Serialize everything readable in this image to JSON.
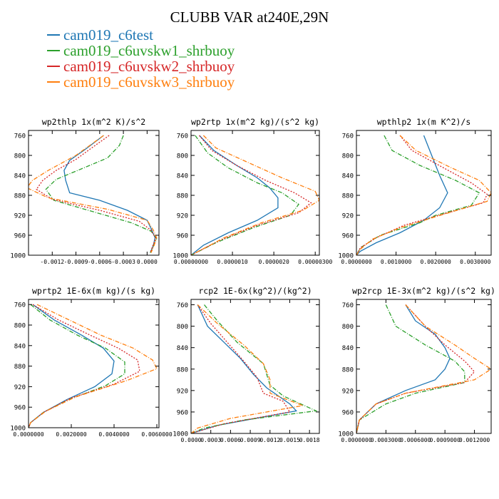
{
  "title": "CLUBB VAR at240E,29N",
  "legend": [
    {
      "name": "cam019_c6test",
      "color": "#1f77b4",
      "dash": "solid"
    },
    {
      "name": "cam019_c6uvskw1_shrbuoy",
      "color": "#2ca02c",
      "dash": "dashdot"
    },
    {
      "name": "cam019_c6uvskw2_shrbuoy",
      "color": "#d62728",
      "dash": "dot"
    },
    {
      "name": "cam019_c6uvskw3_shrbuoy",
      "color": "#ff7f0e",
      "dash": "dashdot"
    }
  ],
  "chart_data": [
    {
      "type": "line",
      "title": "wp2thlp  1x(m^2 K)/s^2",
      "xlim": [
        -0.0015,
        0.00015
      ],
      "ylim": [
        1000,
        750
      ],
      "yticks": [
        760,
        800,
        840,
        880,
        920,
        960,
        1000
      ],
      "xticks": [
        -0.0012,
        -0.0009,
        -0.0006,
        -0.0003,
        0.0
      ],
      "xticklabels": [
        "-0.0012",
        "-0.0009",
        "-0.0006",
        "-0.0003",
        "0.0000"
      ],
      "series": [
        {
          "name": "cam019_c6test",
          "x": [
            -0.00055,
            -0.0008,
            -0.00098,
            -0.00105,
            -0.00103,
            -0.00098,
            -0.0006,
            -0.00025,
            0.0,
            6e-05,
            0.0001,
            8e-05,
            4e-05
          ],
          "y": [
            760,
            790,
            810,
            830,
            850,
            875,
            890,
            910,
            930,
            950,
            965,
            980,
            995
          ]
        },
        {
          "name": "cam019_c6uvskw1_shrbuoy",
          "x": [
            -0.0003,
            -0.00035,
            -0.0005,
            -0.0008,
            -0.00115,
            -0.00128,
            -0.00118,
            -0.0007,
            -0.0002,
            5e-05,
            0.00012,
            8e-05,
            4e-05
          ],
          "y": [
            760,
            780,
            805,
            825,
            848,
            868,
            890,
            912,
            935,
            952,
            966,
            982,
            995
          ]
        },
        {
          "name": "cam019_c6uvskw2_shrbuoy",
          "x": [
            -0.00048,
            -0.0007,
            -0.0009,
            -0.00115,
            -0.00132,
            -0.0014,
            -0.0012,
            -0.0006,
            -0.0001,
            5e-05,
            0.00011,
            7e-05,
            4e-05
          ],
          "y": [
            760,
            785,
            808,
            830,
            850,
            868,
            888,
            910,
            932,
            950,
            966,
            982,
            995
          ]
        },
        {
          "name": "cam019_c6uvskw3_shrbuoy",
          "x": [
            -0.00055,
            -0.0009,
            -0.00125,
            -0.00145,
            -0.00152,
            -0.00125,
            -0.0005,
            0.0,
            8e-05,
            0.00012,
            9e-05,
            5e-05
          ],
          "y": [
            760,
            800,
            830,
            850,
            865,
            885,
            908,
            930,
            950,
            965,
            980,
            995
          ]
        }
      ]
    },
    {
      "type": "line",
      "title": "wp2rtp  1x(m^2 kg)/(s^2 kg)",
      "xlim": [
        0,
        3.1e-06
      ],
      "ylim": [
        1000,
        750
      ],
      "yticks": [
        760,
        800,
        840,
        880,
        920,
        960,
        1000
      ],
      "xticks": [
        0,
        1e-06,
        2e-06,
        3e-06
      ],
      "xticklabels": [
        "0.00000000",
        "0.0000010",
        "0.0000020",
        "0.00000300"
      ],
      "series": [
        {
          "name": "cam019_c6test",
          "x": [
            2e-07,
            5.5e-07,
            1.1e-06,
            1.6e-06,
            1.9e-06,
            2.1e-06,
            2.1e-06,
            1.6e-06,
            9e-07,
            3e-07,
            0.0
          ],
          "y": [
            760,
            790,
            820,
            845,
            865,
            885,
            905,
            930,
            955,
            980,
            1000
          ]
        },
        {
          "name": "cam019_c6uvskw1_shrbuoy",
          "x": [
            1e-07,
            4e-07,
            9e-07,
            1.6e-06,
            2.2e-06,
            2.6e-06,
            2.4e-06,
            1.5e-06,
            6e-07,
            0.0
          ],
          "y": [
            760,
            795,
            825,
            855,
            875,
            898,
            920,
            945,
            975,
            1000
          ]
        },
        {
          "name": "cam019_c6uvskw2_shrbuoy",
          "x": [
            2e-07,
            5e-07,
            1.1e-06,
            1.8e-06,
            2.5e-06,
            2.9e-06,
            2.6e-06,
            1.6e-06,
            7e-07,
            0.0
          ],
          "y": [
            760,
            790,
            820,
            850,
            875,
            895,
            915,
            940,
            970,
            1000
          ]
        },
        {
          "name": "cam019_c6uvskw3_shrbuoy",
          "x": [
            3e-07,
            6e-07,
            1.4e-06,
            2.2e-06,
            3e-06,
            3.1e-06,
            2.7e-06,
            1.7e-06,
            8e-07,
            0.0
          ],
          "y": [
            760,
            785,
            815,
            845,
            872,
            890,
            910,
            935,
            965,
            1000
          ]
        }
      ]
    },
    {
      "type": "line",
      "title": "wpthlp2  1x(m K^2)/s",
      "xlim": [
        0,
        0.0034
      ],
      "ylim": [
        1000,
        750
      ],
      "yticks": [
        760,
        800,
        840,
        880,
        920,
        960,
        1000
      ],
      "xticks": [
        0,
        0.001,
        0.002,
        0.003
      ],
      "xticklabels": [
        "0.0000000",
        "0.0010000",
        "0.0020000",
        "0.0030000"
      ],
      "series": [
        {
          "name": "cam019_c6test",
          "x": [
            0.0017,
            0.0019,
            0.0021,
            0.0023,
            0.0021,
            0.0017,
            0.0011,
            0.0005,
            0.0001,
            0.0
          ],
          "y": [
            760,
            800,
            840,
            875,
            905,
            930,
            955,
            975,
            992,
            1000
          ]
        },
        {
          "name": "cam019_c6uvskw1_shrbuoy",
          "x": [
            0.0007,
            0.0009,
            0.0016,
            0.0025,
            0.0031,
            0.0029,
            0.002,
            0.0016,
            0.0006,
            0.0001,
            0.0
          ],
          "y": [
            760,
            790,
            820,
            850,
            875,
            900,
            920,
            935,
            960,
            985,
            1000
          ]
        },
        {
          "name": "cam019_c6uvskw2_shrbuoy",
          "x": [
            0.0011,
            0.0014,
            0.0022,
            0.0029,
            0.0033,
            0.0032,
            0.0023,
            0.0012,
            0.0005,
            0.0001,
            0.0
          ],
          "y": [
            760,
            790,
            825,
            855,
            878,
            895,
            915,
            940,
            965,
            985,
            1000
          ]
        },
        {
          "name": "cam019_c6uvskw3_shrbuoy",
          "x": [
            0.0011,
            0.0015,
            0.0024,
            0.0031,
            0.0034,
            0.0033,
            0.0022,
            0.0011,
            0.0004,
            0.0001,
            0.0
          ],
          "y": [
            760,
            790,
            825,
            850,
            875,
            892,
            918,
            945,
            968,
            988,
            1000
          ]
        }
      ]
    },
    {
      "type": "line",
      "title": "wprtp2  1E-6x(m kg)/(s kg)",
      "xlim": [
        0,
        0.0061
      ],
      "ylim": [
        1000,
        750
      ],
      "yticks": [
        760,
        800,
        840,
        880,
        920,
        960,
        1000
      ],
      "xticks": [
        0,
        0.002,
        0.004,
        0.006
      ],
      "xticklabels": [
        "0.0000000",
        "0.0020000",
        "0.0040000",
        "0.0060000"
      ],
      "series": [
        {
          "name": "cam019_c6test",
          "x": [
            0.0002,
            0.0012,
            0.0025,
            0.0035,
            0.004,
            0.0039,
            0.0031,
            0.0018,
            0.0007,
            0.0001,
            0.0
          ],
          "y": [
            760,
            790,
            820,
            845,
            870,
            895,
            920,
            945,
            970,
            990,
            1000
          ]
        },
        {
          "name": "cam019_c6uvskw1_shrbuoy",
          "x": [
            0.0001,
            0.001,
            0.0023,
            0.0036,
            0.0045,
            0.0045,
            0.0036,
            0.0019,
            0.0007,
            0.0001,
            0.0
          ],
          "y": [
            760,
            790,
            820,
            845,
            872,
            895,
            918,
            945,
            970,
            990,
            1000
          ]
        },
        {
          "name": "cam019_c6uvskw2_shrbuoy",
          "x": [
            0.0002,
            0.0014,
            0.0029,
            0.0042,
            0.0051,
            0.0052,
            0.004,
            0.002,
            0.0007,
            0.0001,
            0.0
          ],
          "y": [
            760,
            790,
            820,
            845,
            868,
            890,
            915,
            942,
            970,
            990,
            1000
          ]
        },
        {
          "name": "cam019_c6uvskw3_shrbuoy",
          "x": [
            0.0004,
            0.0019,
            0.0034,
            0.0049,
            0.0058,
            0.006,
            0.0046,
            0.0022,
            0.0008,
            0.0001,
            0.0
          ],
          "y": [
            760,
            790,
            820,
            845,
            868,
            885,
            908,
            940,
            968,
            990,
            1000
          ]
        }
      ]
    },
    {
      "type": "line",
      "title": "rcp2  1E-6x(kg^2)/(kg^2)",
      "xlim": [
        0,
        0.00195
      ],
      "ylim": [
        1000,
        750
      ],
      "yticks": [
        760,
        800,
        840,
        880,
        920,
        960,
        1000
      ],
      "xticks": [
        0,
        0.0003,
        0.0006,
        0.0009,
        0.0012,
        0.0015,
        0.0018
      ],
      "xticklabels": [
        "0.0000",
        "0.0003",
        "0.0006",
        "0.0009",
        "0.0012",
        "0.0015",
        "0.0018"
      ],
      "series": [
        {
          "name": "cam019_c6test",
          "x": [
            0.0001,
            0.00025,
            0.0005,
            0.00075,
            0.00095,
            0.00115,
            0.0015,
            0.0016,
            0.0004,
            0.0
          ],
          "y": [
            760,
            800,
            830,
            860,
            890,
            915,
            945,
            958,
            985,
            1000
          ]
        },
        {
          "name": "cam019_c6uvskw1_shrbuoy",
          "x": [
            0.0002,
            0.0004,
            0.0007,
            0.0011,
            0.0012,
            0.0014,
            0.0019,
            0.0008,
            0.0002,
            0.0
          ],
          "y": [
            760,
            790,
            830,
            870,
            910,
            930,
            958,
            975,
            990,
            1000
          ]
        },
        {
          "name": "cam019_c6uvskw2_shrbuoy",
          "x": [
            0.0001,
            0.0003,
            0.00055,
            0.0008,
            0.001,
            0.0011,
            0.0014,
            0.0015,
            0.0005,
            0.0
          ],
          "y": [
            760,
            795,
            830,
            865,
            895,
            925,
            940,
            960,
            982,
            1000
          ]
        },
        {
          "name": "cam019_c6uvskw3_shrbuoy",
          "x": [
            0.0001,
            0.0004,
            0.0008,
            0.0011,
            0.0012,
            0.0012,
            0.0017,
            0.0006,
            0.0001,
            0.0
          ],
          "y": [
            760,
            795,
            835,
            870,
            900,
            925,
            948,
            972,
            990,
            1000
          ]
        }
      ]
    },
    {
      "type": "line",
      "title": "wp2rcp  1E-3x(m^2 kg)/(s^2 kg)",
      "xlim": [
        0,
        0.00137
      ],
      "ylim": [
        1000,
        750
      ],
      "yticks": [
        760,
        800,
        840,
        880,
        920,
        960,
        1000
      ],
      "xticks": [
        0,
        0.0003,
        0.0006,
        0.0009,
        0.0012
      ],
      "xticklabels": [
        "0.0000000",
        "0.0003000",
        "0.0006000",
        "0.0009000",
        "0.0012000"
      ],
      "series": [
        {
          "name": "cam019_c6test",
          "x": [
            0.0005,
            0.0006,
            0.0008,
            0.0009,
            0.00095,
            0.0009,
            0.0008,
            0.0005,
            0.0002,
            3e-05,
            0.0
          ],
          "y": [
            760,
            790,
            815,
            840,
            860,
            880,
            900,
            920,
            945,
            975,
            1000
          ]
        },
        {
          "name": "cam019_c6uvskw1_shrbuoy",
          "x": [
            0.0003,
            0.0004,
            0.0007,
            0.001,
            0.0011,
            0.0011,
            0.0006,
            0.0003,
            3e-05,
            0.0
          ],
          "y": [
            760,
            800,
            835,
            865,
            885,
            905,
            925,
            945,
            975,
            1000
          ]
        },
        {
          "name": "cam019_c6uvskw2_shrbuoy",
          "x": [
            0.0005,
            0.0007,
            0.0009,
            0.0011,
            0.0012,
            0.0011,
            0.0005,
            0.0002,
            3e-05,
            0.0
          ],
          "y": [
            760,
            800,
            835,
            865,
            885,
            905,
            925,
            945,
            975,
            1000
          ]
        },
        {
          "name": "cam019_c6uvskw3_shrbuoy",
          "x": [
            0.0005,
            0.0007,
            0.001,
            0.0012,
            0.00137,
            0.0012,
            0.0005,
            0.0002,
            3e-05,
            0.0
          ],
          "y": [
            760,
            800,
            835,
            860,
            880,
            900,
            925,
            945,
            975,
            1000
          ]
        }
      ]
    }
  ]
}
